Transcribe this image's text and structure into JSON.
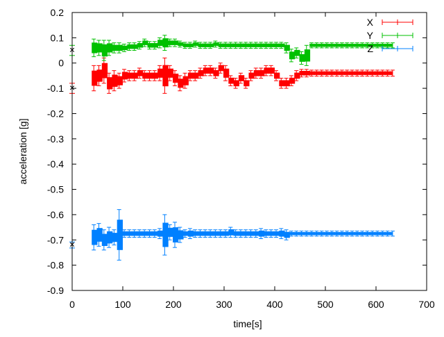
{
  "chart_data": {
    "type": "scatter",
    "subtype": "errorbars",
    "title": "",
    "xlabel": "time[s]",
    "ylabel": "acceleration [g]",
    "xlim": [
      0,
      700
    ],
    "ylim": [
      -0.9,
      0.2
    ],
    "xticks": [
      0,
      100,
      200,
      300,
      400,
      500,
      600,
      700
    ],
    "yticks": [
      0.2,
      0.1,
      0,
      -0.1,
      -0.2,
      -0.3,
      -0.4,
      -0.5,
      -0.6,
      -0.7,
      -0.8,
      -0.9
    ],
    "xtick_labels": [
      "0",
      "100",
      "200",
      "300",
      "400",
      "500",
      "600",
      "700"
    ],
    "ytick_labels": [
      "0.2",
      "0.1",
      "0",
      "-0.1",
      "-0.2",
      "-0.3",
      "-0.4",
      "-0.5",
      "-0.6",
      "-0.7",
      "-0.8",
      "-0.9"
    ],
    "grid": false,
    "legend_position": "top-right",
    "x": [
      0,
      40,
      50,
      60,
      70,
      80,
      90,
      100,
      110,
      120,
      130,
      140,
      150,
      160,
      170,
      180,
      190,
      200,
      210,
      220,
      230,
      240,
      250,
      260,
      270,
      280,
      290,
      300,
      310,
      320,
      330,
      340,
      350,
      360,
      370,
      380,
      390,
      400,
      410,
      420,
      430,
      440,
      450,
      460,
      470,
      480,
      490,
      500,
      510,
      520,
      530,
      540,
      550,
      560,
      570,
      580,
      590,
      600,
      610,
      620,
      630
    ],
    "series": [
      {
        "name": "X",
        "color": "#ff0000",
        "marker": "plus",
        "values": [
          -0.1,
          -0.06,
          -0.05,
          -0.03,
          -0.08,
          -0.07,
          -0.07,
          -0.05,
          -0.05,
          -0.05,
          -0.04,
          -0.05,
          -0.05,
          -0.05,
          -0.04,
          -0.05,
          -0.04,
          -0.06,
          -0.08,
          -0.07,
          -0.05,
          -0.05,
          -0.04,
          -0.03,
          -0.03,
          -0.04,
          -0.02,
          -0.04,
          -0.07,
          -0.08,
          -0.06,
          -0.08,
          -0.05,
          -0.04,
          -0.04,
          -0.03,
          -0.03,
          -0.05,
          -0.08,
          -0.08,
          -0.07,
          -0.05,
          -0.04,
          -0.04,
          -0.04,
          -0.04,
          -0.04,
          -0.04,
          -0.04,
          -0.04,
          -0.04,
          -0.04,
          -0.04,
          -0.04,
          -0.04,
          -0.04,
          -0.04,
          -0.04,
          -0.04,
          -0.04,
          -0.04
        ],
        "errors": [
          0.02,
          0.05,
          0.04,
          0.05,
          0.04,
          0.04,
          0.03,
          0.025,
          0.02,
          0.02,
          0.02,
          0.02,
          0.02,
          0.02,
          0.03,
          0.07,
          0.03,
          0.03,
          0.03,
          0.03,
          0.02,
          0.02,
          0.02,
          0.02,
          0.02,
          0.02,
          0.02,
          0.03,
          0.02,
          0.02,
          0.02,
          0.02,
          0.02,
          0.02,
          0.02,
          0.02,
          0.02,
          0.02,
          0.02,
          0.02,
          0.02,
          0.02,
          0.015,
          0.015,
          0.012,
          0.012,
          0.012,
          0.012,
          0.012,
          0.012,
          0.012,
          0.012,
          0.012,
          0.012,
          0.012,
          0.012,
          0.012,
          0.012,
          0.012,
          0.012,
          0.012
        ]
      },
      {
        "name": "Y",
        "color": "#00c000",
        "marker": "x",
        "values": [
          0.05,
          0.06,
          0.06,
          0.05,
          0.06,
          0.06,
          0.06,
          0.06,
          0.065,
          0.065,
          0.07,
          0.08,
          0.07,
          0.07,
          0.08,
          0.08,
          0.08,
          0.08,
          0.075,
          0.07,
          0.07,
          0.075,
          0.07,
          0.07,
          0.07,
          0.075,
          0.07,
          0.07,
          0.07,
          0.07,
          0.07,
          0.07,
          0.07,
          0.07,
          0.07,
          0.07,
          0.07,
          0.07,
          0.07,
          0.06,
          0.03,
          0.04,
          0.02,
          0.03,
          0.07,
          0.07,
          0.07,
          0.07,
          0.07,
          0.07,
          0.07,
          0.07,
          0.07,
          0.07,
          0.07,
          0.07,
          0.07,
          0.07,
          0.07,
          0.07,
          0.07
        ],
        "errors": [
          0.02,
          0.035,
          0.03,
          0.04,
          0.03,
          0.02,
          0.02,
          0.015,
          0.015,
          0.015,
          0.015,
          0.015,
          0.015,
          0.015,
          0.02,
          0.03,
          0.015,
          0.015,
          0.012,
          0.012,
          0.012,
          0.012,
          0.012,
          0.012,
          0.012,
          0.012,
          0.012,
          0.012,
          0.012,
          0.012,
          0.012,
          0.012,
          0.012,
          0.012,
          0.012,
          0.012,
          0.012,
          0.012,
          0.012,
          0.02,
          0.025,
          0.02,
          0.025,
          0.04,
          0.01,
          0.01,
          0.01,
          0.01,
          0.01,
          0.01,
          0.01,
          0.01,
          0.01,
          0.01,
          0.01,
          0.01,
          0.01,
          0.01,
          0.01,
          0.01,
          0.01
        ]
      },
      {
        "name": "Z",
        "color": "#0080ff",
        "marker": "star",
        "values": [
          -0.72,
          -0.69,
          -0.68,
          -0.7,
          -0.69,
          -0.69,
          -0.68,
          -0.675,
          -0.675,
          -0.675,
          -0.675,
          -0.675,
          -0.675,
          -0.675,
          -0.675,
          -0.68,
          -0.67,
          -0.68,
          -0.68,
          -0.675,
          -0.675,
          -0.675,
          -0.675,
          -0.675,
          -0.675,
          -0.675,
          -0.675,
          -0.675,
          -0.67,
          -0.675,
          -0.675,
          -0.675,
          -0.675,
          -0.675,
          -0.675,
          -0.675,
          -0.675,
          -0.675,
          -0.675,
          -0.68,
          -0.675,
          -0.675,
          -0.675,
          -0.675,
          -0.675,
          -0.675,
          -0.675,
          -0.675,
          -0.675,
          -0.675,
          -0.675,
          -0.675,
          -0.675,
          -0.675,
          -0.675,
          -0.675,
          -0.675,
          -0.675,
          -0.675,
          -0.675,
          -0.675
        ],
        "errors": [
          0.012,
          0.05,
          0.045,
          0.04,
          0.04,
          0.03,
          0.1,
          0.015,
          0.015,
          0.015,
          0.015,
          0.015,
          0.015,
          0.015,
          0.02,
          0.08,
          0.03,
          0.05,
          0.03,
          0.015,
          0.02,
          0.015,
          0.015,
          0.015,
          0.015,
          0.015,
          0.015,
          0.015,
          0.02,
          0.015,
          0.015,
          0.015,
          0.015,
          0.015,
          0.02,
          0.015,
          0.015,
          0.015,
          0.02,
          0.02,
          0.01,
          0.01,
          0.01,
          0.01,
          0.01,
          0.01,
          0.01,
          0.01,
          0.01,
          0.01,
          0.01,
          0.01,
          0.01,
          0.01,
          0.01,
          0.01,
          0.01,
          0.01,
          0.01,
          0.01,
          0.01
        ]
      }
    ]
  }
}
